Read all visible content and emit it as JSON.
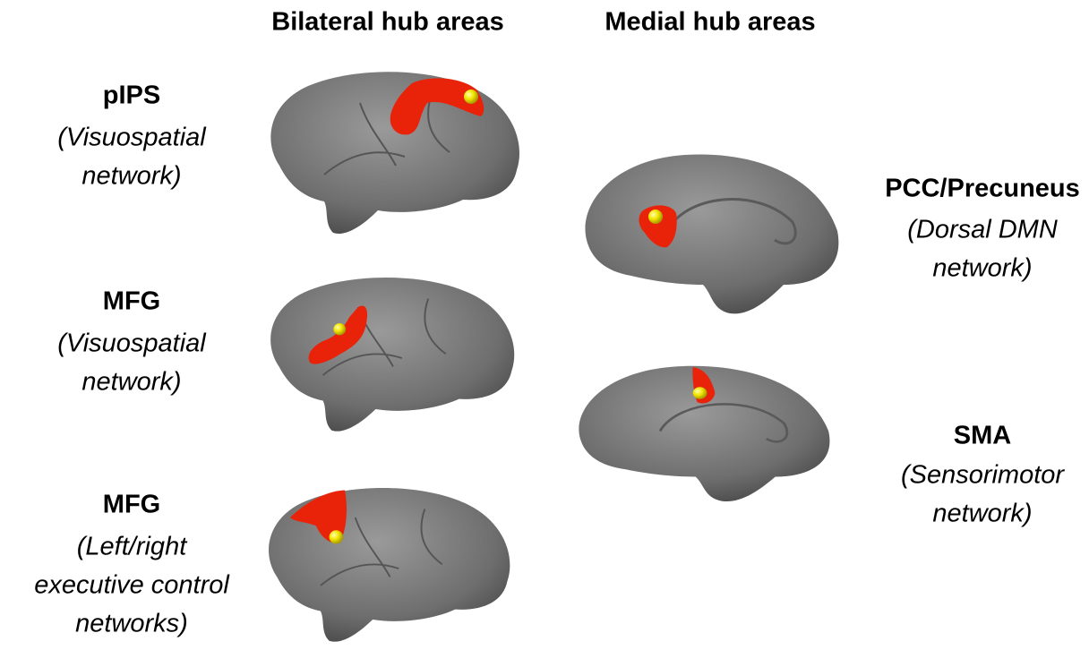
{
  "headers": {
    "bilateral": "Bilateral hub areas",
    "medial": "Medial hub areas"
  },
  "bilateral_hubs": [
    {
      "name": "pIPS",
      "network_lines": [
        "(Visuospatial",
        "network)"
      ]
    },
    {
      "name": "MFG",
      "network_lines": [
        "(Visuospatial",
        "network)"
      ]
    },
    {
      "name": "MFG",
      "network_lines": [
        "(Left/right",
        "executive control",
        "networks)"
      ]
    }
  ],
  "medial_hubs": [
    {
      "name": "PCC/Precuneus",
      "network_lines": [
        "(Dorsal DMN",
        "network)"
      ]
    },
    {
      "name": "SMA",
      "network_lines": [
        "(Sensorimotor",
        "network)"
      ]
    }
  ]
}
